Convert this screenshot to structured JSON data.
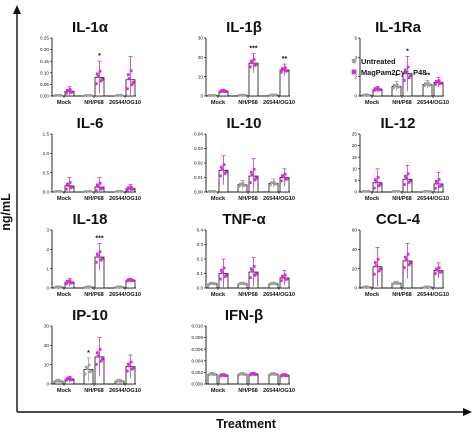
{
  "figure": {
    "ylabel": "ng/mL",
    "xlabel": "Treatment",
    "legend": [
      {
        "label": "Untreated",
        "color": "#9e9e9e",
        "marker": "circle"
      },
      {
        "label": "MagPam2Cys_P48",
        "color": "#cc33cc",
        "marker": "square"
      }
    ],
    "colors": {
      "untreated": "#9e9e9e",
      "treated": "#cc33cc",
      "axis": "#111111"
    }
  },
  "chart_data": [
    {
      "type": "bar",
      "title": "IL-1α",
      "categories": [
        "Mock",
        "NH/P68",
        "26544/OG10"
      ],
      "yticks": [
        "0.00",
        "0.05",
        "0.10",
        "0.15",
        "0.20",
        "0.25"
      ],
      "ylim": [
        0,
        0.25
      ],
      "series": [
        {
          "name": "Untreated",
          "values": [
            0.0,
            0.0,
            0.0
          ],
          "err": [
            0.002,
            0.002,
            0.002
          ]
        },
        {
          "name": "MagPam2Cys_P48",
          "values": [
            0.02,
            0.08,
            0.07
          ],
          "err": [
            0.02,
            0.07,
            0.1
          ]
        }
      ],
      "sig": [
        {
          "category": 1,
          "series": 1,
          "label": "*"
        }
      ]
    },
    {
      "type": "bar",
      "title": "IL-1β",
      "categories": [
        "Mock",
        "NH/P68",
        "26544/OG10"
      ],
      "yticks": [
        "0",
        "10",
        "20",
        "30"
      ],
      "ylim": [
        0,
        30
      ],
      "series": [
        {
          "name": "Untreated",
          "values": [
            0.3,
            0.4,
            0.5
          ],
          "err": [
            0.2,
            0.2,
            0.2
          ]
        },
        {
          "name": "MagPam2Cys_P48",
          "values": [
            2.5,
            17,
            13.5
          ],
          "err": [
            1,
            5,
            3
          ]
        }
      ],
      "sig": [
        {
          "category": 1,
          "series": 1,
          "label": "***"
        },
        {
          "category": 2,
          "series": 1,
          "label": "**"
        }
      ]
    },
    {
      "type": "bar",
      "title": "IL-1Ra",
      "categories": [
        "Mock",
        "NH/P68",
        "26544/OG10"
      ],
      "yticks": [
        "0",
        "2",
        "4",
        "6"
      ],
      "ylim": [
        0,
        6
      ],
      "series": [
        {
          "name": "Untreated",
          "values": [
            0.1,
            1.0,
            1.2
          ],
          "err": [
            0.1,
            0.5,
            0.4
          ]
        },
        {
          "name": "MagPam2Cys_P48",
          "values": [
            0.7,
            2.3,
            1.4
          ],
          "err": [
            0.3,
            1.8,
            0.5
          ]
        }
      ],
      "sig": [
        {
          "category": 1,
          "series": 0,
          "label": "*"
        },
        {
          "category": 1,
          "series": 1,
          "label": "*"
        },
        {
          "category": 2,
          "series": 0,
          "label": "**"
        }
      ]
    },
    {
      "type": "bar",
      "title": "IL-6",
      "categories": [
        "Mock",
        "NH/P68",
        "26544/OG10"
      ],
      "yticks": [
        "0.0",
        "0.5",
        "1.0",
        "1.5"
      ],
      "ylim": [
        0,
        1.5
      ],
      "series": [
        {
          "name": "Untreated",
          "values": [
            0.0,
            0.0,
            0.0
          ],
          "err": [
            0.01,
            0.01,
            0.01
          ]
        },
        {
          "name": "MagPam2Cys_P48",
          "values": [
            0.16,
            0.13,
            0.09
          ],
          "err": [
            0.22,
            0.25,
            0.1
          ]
        }
      ],
      "sig": []
    },
    {
      "type": "bar",
      "title": "IL-10",
      "categories": [
        "Mock",
        "NH/P68",
        "26544/OG10"
      ],
      "yticks": [
        "0.00",
        "0.01",
        "0.02",
        "0.03",
        "0.04"
      ],
      "ylim": [
        0,
        0.04
      ],
      "series": [
        {
          "name": "Untreated",
          "values": [
            0.0,
            0.005,
            0.006
          ],
          "err": [
            0.001,
            0.003,
            0.003
          ]
        },
        {
          "name": "MagPam2Cys_P48",
          "values": [
            0.015,
            0.011,
            0.01
          ],
          "err": [
            0.01,
            0.012,
            0.006
          ]
        }
      ],
      "sig": []
    },
    {
      "type": "bar",
      "title": "IL-12",
      "categories": [
        "Mock",
        "NH/P68",
        "26544/OG10"
      ],
      "yticks": [
        "0",
        "5",
        "10",
        "15",
        "20",
        "25"
      ],
      "ylim": [
        0,
        25
      ],
      "series": [
        {
          "name": "Untreated",
          "values": [
            0.1,
            0.1,
            0.1
          ],
          "err": [
            0.1,
            0.1,
            0.1
          ]
        },
        {
          "name": "MagPam2Cys_P48",
          "values": [
            4,
            5.5,
            3.5
          ],
          "err": [
            6,
            6,
            5
          ]
        }
      ],
      "sig": []
    },
    {
      "type": "bar",
      "title": "IL-18",
      "categories": [
        "Mock",
        "NH/P68",
        "26544/OG10"
      ],
      "yticks": [
        "0",
        "1",
        "2",
        "3"
      ],
      "ylim": [
        0,
        3
      ],
      "series": [
        {
          "name": "Untreated",
          "values": [
            0.05,
            0.05,
            0.05
          ],
          "err": [
            0.05,
            0.05,
            0.05
          ]
        },
        {
          "name": "MagPam2Cys_P48",
          "values": [
            0.3,
            1.6,
            0.4
          ],
          "err": [
            0.2,
            0.7,
            0.1
          ]
        }
      ],
      "sig": [
        {
          "category": 1,
          "series": 1,
          "label": "***"
        }
      ]
    },
    {
      "type": "bar",
      "title": "TNF-α",
      "categories": [
        "Mock",
        "NH/P68",
        "26544/OG10"
      ],
      "yticks": [
        "0.0",
        "0.1",
        "0.2",
        "0.3",
        "0.4"
      ],
      "ylim": [
        0,
        0.4
      ],
      "series": [
        {
          "name": "Untreated",
          "values": [
            0.03,
            0.03,
            0.03
          ],
          "err": [
            0.01,
            0.01,
            0.01
          ]
        },
        {
          "name": "MagPam2Cys_P48",
          "values": [
            0.1,
            0.11,
            0.07
          ],
          "err": [
            0.1,
            0.1,
            0.05
          ]
        }
      ],
      "sig": []
    },
    {
      "type": "bar",
      "title": "CCL-4",
      "categories": [
        "Mock",
        "NH/P68",
        "26544/OG10"
      ],
      "yticks": [
        "0",
        "20",
        "40",
        "60"
      ],
      "ylim": [
        0,
        60
      ],
      "series": [
        {
          "name": "Untreated",
          "values": [
            1,
            5,
            1
          ],
          "err": [
            1,
            2,
            1
          ]
        },
        {
          "name": "MagPam2Cys_P48",
          "values": [
            22,
            28,
            18
          ],
          "err": [
            20,
            18,
            8
          ]
        }
      ],
      "sig": []
    },
    {
      "type": "bar",
      "title": "IP-10",
      "categories": [
        "Mock",
        "NH/P68",
        "26544/OG10"
      ],
      "yticks": [
        "0",
        "10",
        "20",
        "30"
      ],
      "ylim": [
        0,
        30
      ],
      "series": [
        {
          "name": "Untreated",
          "values": [
            1.5,
            7.5,
            1.5
          ],
          "err": [
            1,
            6,
            1
          ]
        },
        {
          "name": "MagPam2Cys_P48",
          "values": [
            2.5,
            14,
            9
          ],
          "err": [
            1.5,
            10,
            6
          ]
        }
      ],
      "sig": [
        {
          "category": 1,
          "series": 0,
          "label": "*"
        }
      ]
    },
    {
      "type": "bar",
      "title": "IFN-β",
      "categories": [
        "Mock",
        "NH/P68",
        "26544/OG10"
      ],
      "yticks": [
        "0.000",
        "0.002",
        "0.004",
        "0.006",
        "0.008",
        "0.010"
      ],
      "ylim": [
        0,
        0.01
      ],
      "series": [
        {
          "name": "Untreated",
          "values": [
            0.0017,
            0.0017,
            0.0017
          ],
          "err": [
            0.0003,
            0.0003,
            0.0003
          ]
        },
        {
          "name": "MagPam2Cys_P48",
          "values": [
            0.0015,
            0.0017,
            0.0015
          ],
          "err": [
            0.0003,
            0.0003,
            0.0003
          ]
        }
      ],
      "sig": []
    }
  ]
}
